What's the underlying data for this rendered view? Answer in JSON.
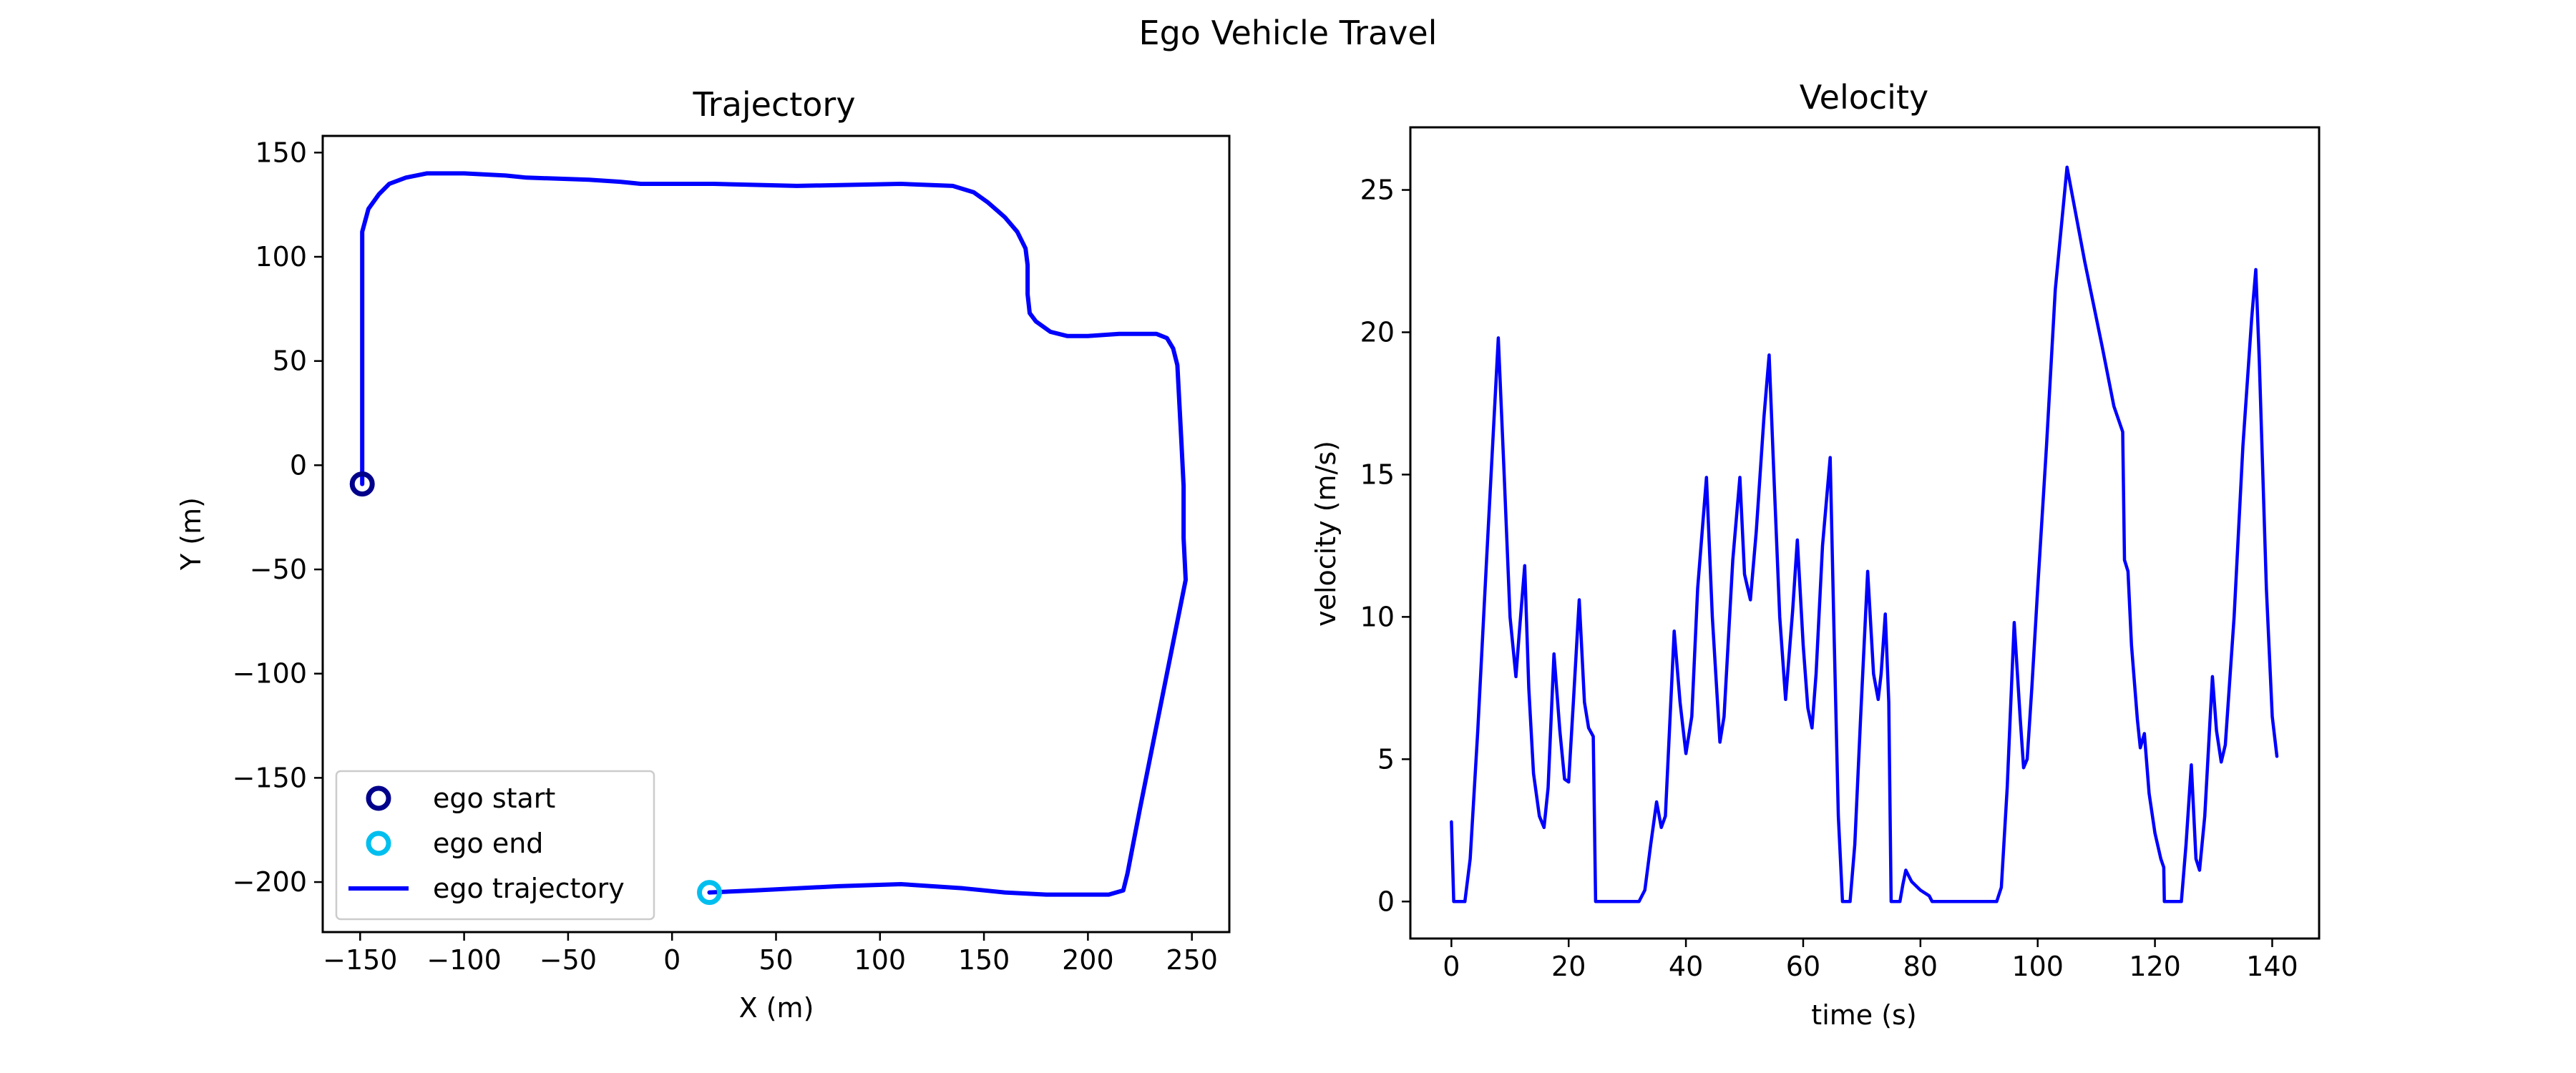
{
  "figure": {
    "suptitle": "Ego Vehicle Travel"
  },
  "chart_data": [
    {
      "type": "line",
      "title": "Trajectory",
      "xlabel": "X (m)",
      "ylabel": "Y (m)",
      "xlim": [
        -168,
        268
      ],
      "ylim": [
        -224,
        158
      ],
      "xticks": [
        -150,
        -100,
        -50,
        0,
        50,
        100,
        150,
        200,
        250
      ],
      "yticks": [
        150,
        100,
        50,
        0,
        -50,
        -100,
        -150,
        -200
      ],
      "grid": false,
      "legend": {
        "placement": "lower-left",
        "entries": [
          {
            "label": "ego start",
            "marker": "circle",
            "color": "#00008b"
          },
          {
            "label": "ego end",
            "marker": "circle",
            "color": "#00bfef"
          },
          {
            "label": "ego trajectory",
            "marker": "line",
            "color": "#0000ff"
          }
        ]
      },
      "markers": [
        {
          "name": "ego start",
          "x": -149,
          "y": -9,
          "color": "#00008b"
        },
        {
          "name": "ego end",
          "x": 18,
          "y": -205,
          "color": "#00bfef"
        }
      ],
      "series": [
        {
          "name": "ego trajectory",
          "color": "#0000ff",
          "points": [
            [
              -149,
              -9
            ],
            [
              -149,
              112
            ],
            [
              -146,
              123
            ],
            [
              -141,
              130
            ],
            [
              -136,
              135
            ],
            [
              -128,
              138
            ],
            [
              -118,
              140
            ],
            [
              -100,
              140
            ],
            [
              -80,
              139
            ],
            [
              -70,
              138
            ],
            [
              -40,
              137
            ],
            [
              -25,
              136
            ],
            [
              -15,
              135
            ],
            [
              20,
              135
            ],
            [
              60,
              134
            ],
            [
              110,
              135
            ],
            [
              135,
              134
            ],
            [
              145,
              131
            ],
            [
              152,
              126
            ],
            [
              160,
              119
            ],
            [
              166,
              112
            ],
            [
              170,
              104
            ],
            [
              171,
              96
            ],
            [
              171,
              82
            ],
            [
              172,
              73
            ],
            [
              175,
              69
            ],
            [
              182,
              64
            ],
            [
              190,
              62
            ],
            [
              200,
              62
            ],
            [
              215,
              63
            ],
            [
              233,
              63
            ],
            [
              238,
              61
            ],
            [
              241,
              56
            ],
            [
              243,
              48
            ],
            [
              245,
              10
            ],
            [
              246,
              -10
            ],
            [
              246,
              -35
            ],
            [
              247,
              -55
            ],
            [
              236,
              -110
            ],
            [
              225,
              -165
            ],
            [
              219,
              -196
            ],
            [
              217,
              -204
            ],
            [
              210,
              -206
            ],
            [
              180,
              -206
            ],
            [
              160,
              -205
            ],
            [
              150,
              -204
            ],
            [
              140,
              -203
            ],
            [
              110,
              -201
            ],
            [
              80,
              -202
            ],
            [
              40,
              -204
            ],
            [
              18,
              -205
            ]
          ]
        }
      ]
    },
    {
      "type": "line",
      "title": "Velocity",
      "xlabel": "time (s)",
      "ylabel": "velocity (m/s)",
      "xlim": [
        -7,
        148
      ],
      "ylim": [
        -1.3,
        27.2
      ],
      "xticks": [
        0,
        20,
        40,
        60,
        80,
        100,
        120,
        140
      ],
      "yticks": [
        0,
        5,
        10,
        15,
        20,
        25
      ],
      "grid": false,
      "series": [
        {
          "name": "",
          "color": "#0000ff",
          "points": [
            [
              0,
              2.8
            ],
            [
              0.4,
              0
            ],
            [
              2.3,
              0
            ],
            [
              3.2,
              1.5
            ],
            [
              4.5,
              6
            ],
            [
              6,
              12
            ],
            [
              8,
              19.8
            ],
            [
              9,
              15
            ],
            [
              10,
              10
            ],
            [
              11,
              7.9
            ],
            [
              11.6,
              9.5
            ],
            [
              12.5,
              11.8
            ],
            [
              13.2,
              7.5
            ],
            [
              14,
              4.5
            ],
            [
              15,
              3.0
            ],
            [
              15.8,
              2.6
            ],
            [
              16.5,
              4
            ],
            [
              17.5,
              8.7
            ],
            [
              18.5,
              6
            ],
            [
              19.3,
              4.3
            ],
            [
              20,
              4.2
            ],
            [
              20.8,
              7
            ],
            [
              21.8,
              10.6
            ],
            [
              22.7,
              7
            ],
            [
              23.4,
              6.1
            ],
            [
              24.2,
              5.8
            ],
            [
              24.6,
              0
            ],
            [
              32,
              0
            ],
            [
              33,
              0.4
            ],
            [
              34,
              2
            ],
            [
              35,
              3.5
            ],
            [
              35.8,
              2.6
            ],
            [
              36.5,
              3
            ],
            [
              38,
              9.5
            ],
            [
              39,
              7
            ],
            [
              40,
              5.2
            ],
            [
              41,
              6.5
            ],
            [
              42,
              11
            ],
            [
              43.5,
              14.9
            ],
            [
              44.5,
              10
            ],
            [
              45.8,
              5.6
            ],
            [
              46.5,
              6.5
            ],
            [
              48,
              12
            ],
            [
              49.2,
              14.9
            ],
            [
              50,
              11.5
            ],
            [
              51,
              10.6
            ],
            [
              52,
              13
            ],
            [
              53.3,
              17
            ],
            [
              54.2,
              19.2
            ],
            [
              55,
              15
            ],
            [
              56,
              10
            ],
            [
              57,
              7.1
            ],
            [
              58.2,
              10.2
            ],
            [
              59,
              12.7
            ],
            [
              60,
              9
            ],
            [
              60.8,
              6.8
            ],
            [
              61.5,
              6.1
            ],
            [
              62.2,
              8
            ],
            [
              63.3,
              12.5
            ],
            [
              64.6,
              15.6
            ],
            [
              65.2,
              10
            ],
            [
              66,
              3
            ],
            [
              66.7,
              0
            ],
            [
              68,
              0
            ],
            [
              68.8,
              2
            ],
            [
              69.8,
              6.5
            ],
            [
              71,
              11.6
            ],
            [
              72,
              8
            ],
            [
              72.8,
              7.1
            ],
            [
              73.3,
              8
            ],
            [
              74,
              10.1
            ],
            [
              74.6,
              7
            ],
            [
              75,
              0
            ],
            [
              76.5,
              0
            ],
            [
              77,
              0.6
            ],
            [
              77.5,
              1.1
            ],
            [
              78.5,
              0.7
            ],
            [
              80,
              0.4
            ],
            [
              81.5,
              0.2
            ],
            [
              82,
              0
            ],
            [
              93,
              0
            ],
            [
              93.8,
              0.5
            ],
            [
              94.8,
              4
            ],
            [
              96,
              9.8
            ],
            [
              97,
              6.5
            ],
            [
              97.6,
              4.7
            ],
            [
              98.2,
              5
            ],
            [
              99,
              7.5
            ],
            [
              100,
              11
            ],
            [
              101.5,
              16
            ],
            [
              103,
              21.5
            ],
            [
              105,
              25.8
            ],
            [
              108,
              22.5
            ],
            [
              111,
              19.5
            ],
            [
              113,
              17.4
            ],
            [
              114.5,
              16.5
            ],
            [
              114.8,
              12
            ],
            [
              115.4,
              11.6
            ],
            [
              116,
              9
            ],
            [
              117,
              6.4
            ],
            [
              117.5,
              5.4
            ],
            [
              118.2,
              5.9
            ],
            [
              119,
              3.8
            ],
            [
              120,
              2.4
            ],
            [
              121,
              1.5
            ],
            [
              121.5,
              1.2
            ],
            [
              121.6,
              0
            ],
            [
              124.5,
              0
            ],
            [
              125.3,
              2
            ],
            [
              126.2,
              4.8
            ],
            [
              127,
              1.5
            ],
            [
              127.6,
              1.1
            ],
            [
              128.5,
              3
            ],
            [
              129.8,
              7.9
            ],
            [
              130.5,
              6
            ],
            [
              131.3,
              4.9
            ],
            [
              132,
              5.5
            ],
            [
              133.5,
              10
            ],
            [
              135,
              16
            ],
            [
              136.5,
              20.5
            ],
            [
              137.2,
              22.2
            ],
            [
              137.8,
              19
            ],
            [
              139,
              11
            ],
            [
              140,
              6.5
            ],
            [
              140.8,
              5.1
            ]
          ]
        }
      ]
    }
  ]
}
